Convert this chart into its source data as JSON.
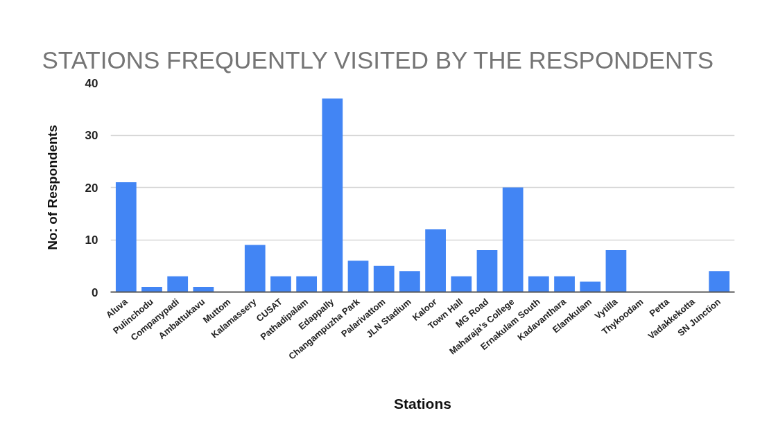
{
  "chart_data": {
    "type": "bar",
    "title": "STATIONS FREQUENTLY VISITED BY THE RESPONDENTS",
    "xlabel": "Stations",
    "ylabel": "No: of Respondents",
    "categories": [
      "Aluva",
      "Pulinchodu",
      "Companypadi",
      "Ambattukavu",
      "Muttom",
      "Kalamassery",
      "CUSAT",
      "Pathadipalam",
      "Edappally",
      "Changampuzha Park",
      "Palarivattom",
      "JLN Stadium",
      "Kaloor",
      "Town Hall",
      "MG Road",
      "Maharaja's College",
      "Ernakulam South",
      "Kadavanthara",
      "Elamkulam",
      "Vytilla",
      "Thykoodam",
      "Petta",
      "Vadakkekotta",
      "SN Junction"
    ],
    "values": [
      21,
      1,
      3,
      1,
      0,
      9,
      3,
      3,
      37,
      6,
      5,
      4,
      12,
      3,
      8,
      20,
      3,
      3,
      2,
      8,
      0,
      0,
      0,
      4
    ],
    "color": "#4285f4",
    "ylim": [
      0,
      40
    ],
    "yticks": [
      0,
      10,
      20,
      30,
      40
    ],
    "grid": "y"
  }
}
